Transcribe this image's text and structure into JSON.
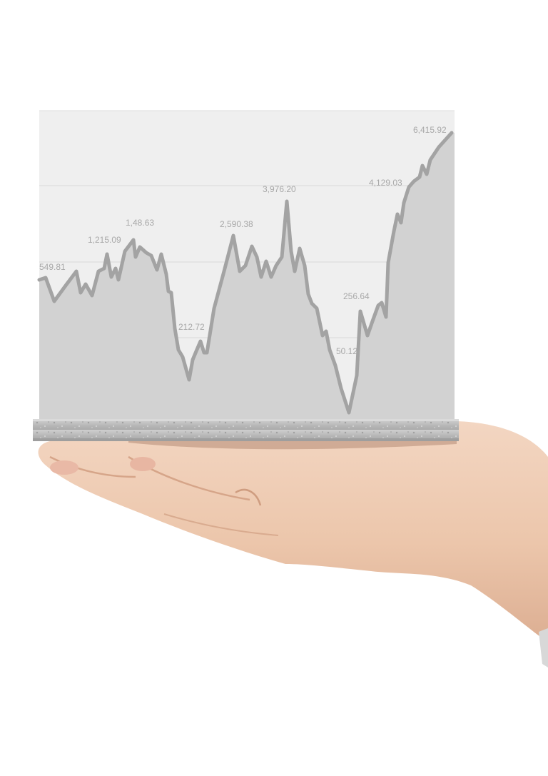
{
  "colors": {
    "background": "#ffffff",
    "panel": "#efefef",
    "area_fill": "#d2d2d2",
    "line": "#a3a3a3",
    "label": "#a8a8a8",
    "grid": "#d8d8d8",
    "stone": "#bdbdbd",
    "skin": "#efcfb7",
    "skin_shadow": "#d9a98c"
  },
  "chart_data": {
    "type": "area",
    "labels": [
      "549.81",
      "1,215.09",
      "1,48.63",
      "212.72",
      "2,590.38",
      "3,976.20",
      "50.12",
      "256.64",
      "4,129.03",
      "6,415.92"
    ],
    "grid": true,
    "legend": "none"
  }
}
